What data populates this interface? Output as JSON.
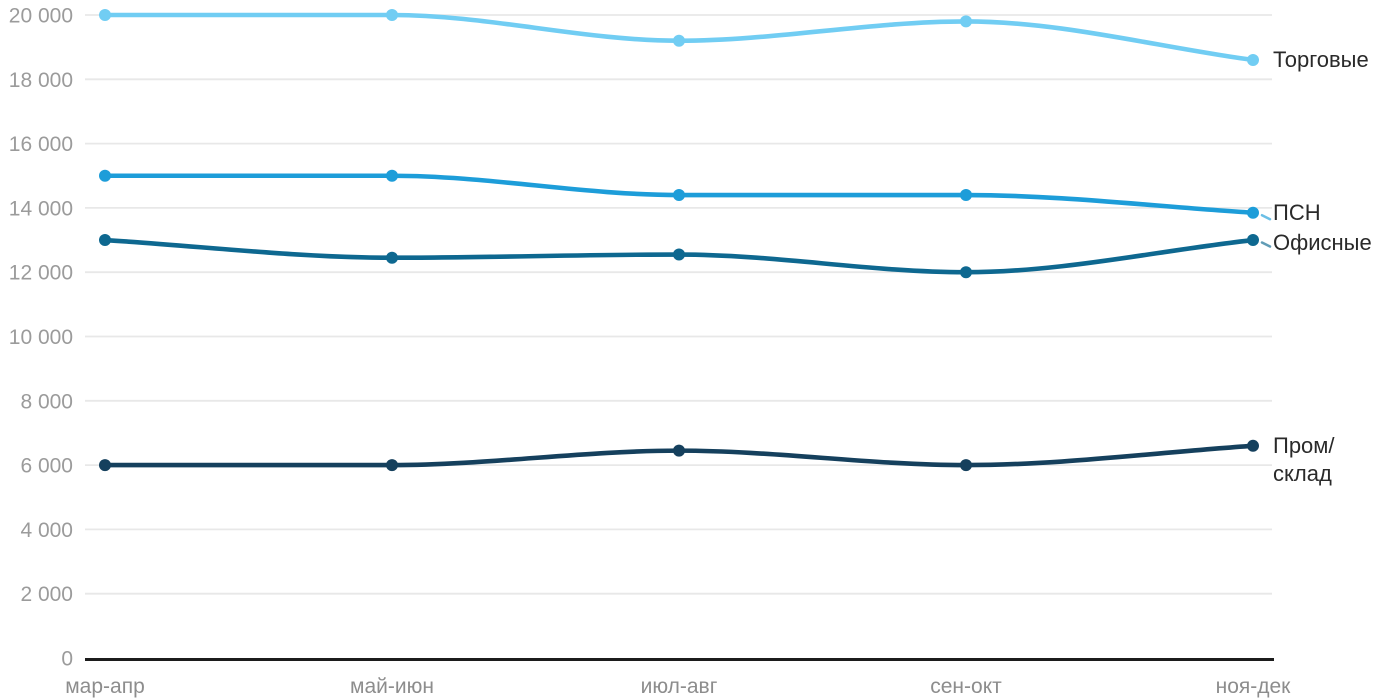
{
  "chart_data": {
    "type": "line",
    "categories": [
      "мар-апр",
      "май-июн",
      "июл-авг",
      "сен-окт",
      "ноя-дек"
    ],
    "series": [
      {
        "slug": "torgovye",
        "name": "Торговые",
        "label": "Торговые",
        "color": "#71cdf3",
        "values": [
          20000,
          20000,
          19200,
          19800,
          18600
        ],
        "leader_dash": false
      },
      {
        "slug": "psn",
        "name": "ПСН",
        "label": "ПСН",
        "color": "#1d9dd9",
        "values": [
          15000,
          15000,
          14400,
          14400,
          13850
        ],
        "leader_dash": true
      },
      {
        "slug": "ofisnye",
        "name": "Офисные",
        "label": "Офисные",
        "color": "#0e6890",
        "values": [
          13000,
          12450,
          12550,
          12000,
          13000
        ],
        "leader_dash": true
      },
      {
        "slug": "prom-sklad",
        "name": "Пром/склад",
        "label": "Пром/\nсклад",
        "color": "#15405d",
        "values": [
          6000,
          6000,
          6450,
          6000,
          6600
        ],
        "leader_dash": false
      }
    ],
    "y_axis": {
      "min": 0,
      "max": 20000,
      "tick_step": 2000,
      "tick_labels": [
        "0",
        "2 000",
        "4 000",
        "6 000",
        "8 000",
        "10 000",
        "12 000",
        "14 000",
        "16 000",
        "18 000",
        "20 000"
      ]
    },
    "x_axis": {
      "labels": [
        "мар-апр",
        "май-июн",
        "июл-авг",
        "сен-окт",
        "ноя-дек"
      ]
    },
    "grid": true,
    "legend_position": "right-end-labels",
    "colors": {
      "grid": "#e8e8e8",
      "axis": "#1c1c1c",
      "y_tick_text": "#9b9b9b",
      "x_tick_text": "#8d8d8d",
      "series_label_text": "#2a2a2a"
    }
  }
}
